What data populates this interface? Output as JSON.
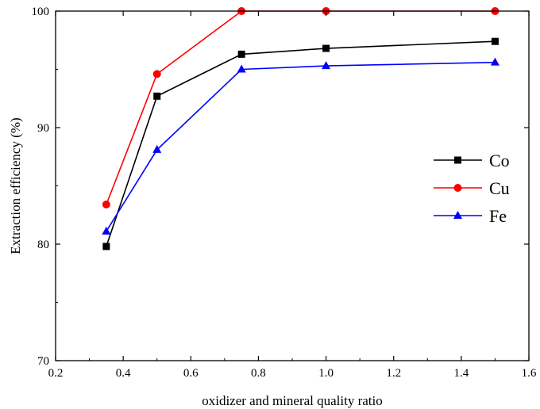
{
  "chart_data": {
    "type": "line",
    "title": "",
    "xlabel": "oxidizer and mineral quality ratio",
    "ylabel": "Extraction efficiency (%)",
    "xlim": [
      0.2,
      1.6
    ],
    "ylim": [
      70,
      100
    ],
    "xticks": [
      "0.2",
      "0.4",
      "0.6",
      "0.8",
      "1.0",
      "1.2",
      "1.4",
      "1.6"
    ],
    "yticks": [
      "70",
      "80",
      "90",
      "100"
    ],
    "grid": false,
    "legend_position": "right",
    "series": [
      {
        "name": "Co",
        "color": "#000000",
        "marker": "square",
        "x": [
          0.35,
          0.5,
          0.75,
          1.0,
          1.5
        ],
        "y": [
          79.8,
          92.7,
          96.3,
          96.8,
          97.4
        ]
      },
      {
        "name": "Cu",
        "color": "#ff0000",
        "marker": "circle",
        "x": [
          0.35,
          0.5,
          0.75,
          1.0,
          1.5
        ],
        "y": [
          83.4,
          94.6,
          100.0,
          100.0,
          100.0
        ]
      },
      {
        "name": "Fe",
        "color": "#0000ff",
        "marker": "triangle",
        "x": [
          0.35,
          0.5,
          0.75,
          1.0,
          1.5
        ],
        "y": [
          81.1,
          88.1,
          95.0,
          95.3,
          95.6
        ]
      }
    ]
  }
}
